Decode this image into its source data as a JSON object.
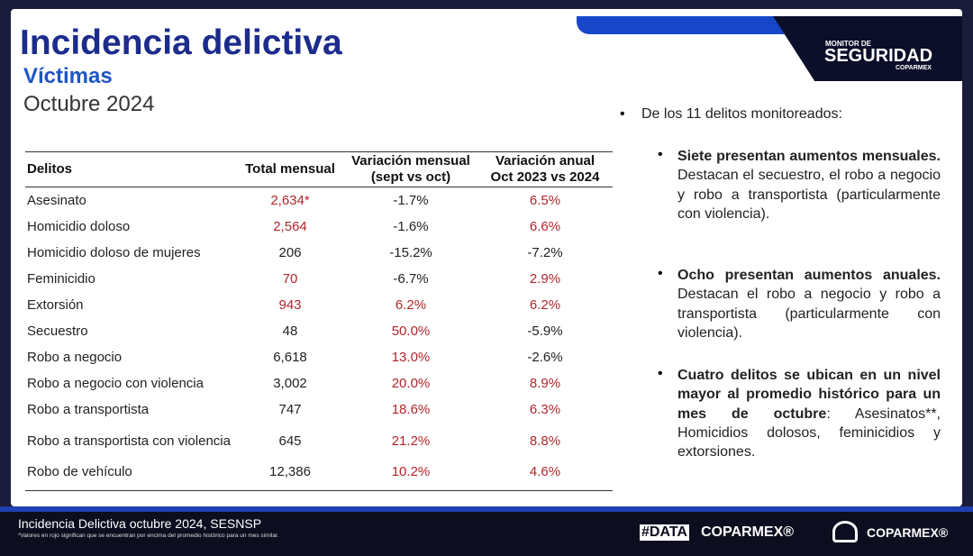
{
  "header": {
    "title": "Incidencia delictiva",
    "subtitle": "Víctimas",
    "period": "Octubre 2024"
  },
  "logo": {
    "line1": "MONITOR DE",
    "line2": "SEGURIDAD",
    "line3": "COPARMEX"
  },
  "table": {
    "highlight_color": "#b0262b",
    "columns": [
      "Delitos",
      "Total mensual",
      "Variación mensual\n(sept vs oct)",
      "Variación anual\nOct 2023 vs 2024"
    ],
    "rows": [
      [
        {
          "text": "Asesinato"
        },
        {
          "text": "2,634*",
          "highlight": true
        },
        {
          "text": "-1.7%"
        },
        {
          "text": "6.5%",
          "highlight": true
        }
      ],
      [
        {
          "text": "Homicidio doloso"
        },
        {
          "text": "2,564",
          "highlight": true
        },
        {
          "text": "-1.6%"
        },
        {
          "text": "6.6%",
          "highlight": true
        }
      ],
      [
        {
          "text": "Homicidio doloso de mujeres"
        },
        {
          "text": "206"
        },
        {
          "text": "-15.2%"
        },
        {
          "text": "-7.2%"
        }
      ],
      [
        {
          "text": "Feminicidio"
        },
        {
          "text": "70",
          "highlight": true
        },
        {
          "text": "-6.7%"
        },
        {
          "text": "2.9%",
          "highlight": true
        }
      ],
      [
        {
          "text": "Extorsión"
        },
        {
          "text": "943",
          "highlight": true
        },
        {
          "text": "6.2%",
          "highlight": true
        },
        {
          "text": "6.2%",
          "highlight": true
        }
      ],
      [
        {
          "text": "Secuestro"
        },
        {
          "text": "48"
        },
        {
          "text": "50.0%",
          "highlight": true
        },
        {
          "text": "-5.9%"
        }
      ],
      [
        {
          "text": "Robo a negocio"
        },
        {
          "text": "6,618"
        },
        {
          "text": "13.0%",
          "highlight": true
        },
        {
          "text": "-2.6%"
        }
      ],
      [
        {
          "text": "Robo a negocio con violencia"
        },
        {
          "text": "3,002"
        },
        {
          "text": "20.0%",
          "highlight": true
        },
        {
          "text": "8.9%",
          "highlight": true
        }
      ],
      [
        {
          "text": "Robo a transportista"
        },
        {
          "text": "747"
        },
        {
          "text": "18.6%",
          "highlight": true
        },
        {
          "text": "6.3%",
          "highlight": true
        }
      ],
      [
        {
          "text": "Robo a transportista con violencia"
        },
        {
          "text": "645"
        },
        {
          "text": "21.2%",
          "highlight": true
        },
        {
          "text": "8.8%",
          "highlight": true
        }
      ],
      [
        {
          "text": "Robo de vehículo"
        },
        {
          "text": "12,386"
        },
        {
          "text": "10.2%",
          "highlight": true
        },
        {
          "text": "4.6%",
          "highlight": true
        }
      ]
    ]
  },
  "summary": {
    "intro": "De los 11 delitos monitoreados:",
    "points": [
      {
        "bold": "Siete presentan aumentos mensuales.",
        "text": " Destacan el secuestro, el robo a negocio y robo a transportista (particularmente con violencia)."
      },
      {
        "bold": "Ocho presentan aumentos anuales.",
        "text": " Destacan el robo a negocio y robo a transportista (particularmente con violencia)."
      },
      {
        "bold": "Cuatro delitos se ubican en un nivel mayor al promedio histórico para un mes de octubre",
        "text": ": Asesinatos**, Homicidios dolosos, feminicidios y extorsiones."
      }
    ]
  },
  "footer": {
    "source": "Incidencia Delictiva octubre 2024, SESNSP",
    "note": "*Valores en rojo significan que se encuentran por encima del promedio histórico para un mes similar.",
    "tag1": "#DATA",
    "tag2": "COPARMEX®",
    "brand": "COPARMEX®"
  }
}
